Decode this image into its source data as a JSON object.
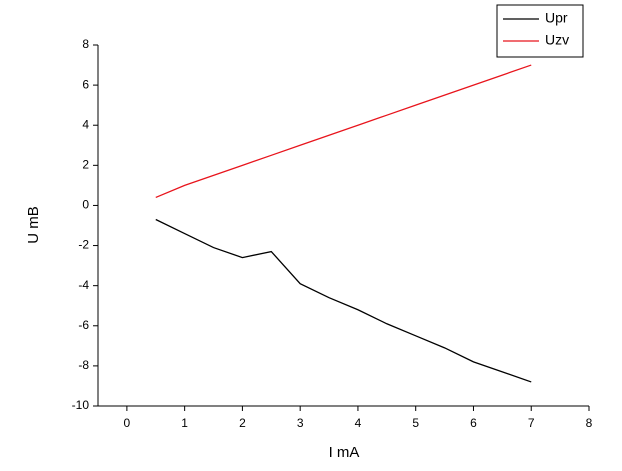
{
  "chart_data": {
    "type": "line",
    "x": [
      0.5,
      1,
      1.5,
      2,
      2.5,
      3,
      3.5,
      4,
      4.5,
      5,
      5.5,
      6,
      6.5,
      7
    ],
    "series": [
      {
        "name": "Upr",
        "color": "#000000",
        "values": [
          -0.7,
          -1.4,
          -2.1,
          -2.6,
          -2.3,
          -3.9,
          -4.6,
          -5.2,
          -5.9,
          -6.5,
          -7.1,
          -7.8,
          -8.3,
          -8.8
        ]
      },
      {
        "name": "Uzv",
        "color": "#e8141c",
        "values": [
          0.4,
          1.0,
          1.5,
          2.0,
          2.5,
          3.0,
          3.5,
          4.0,
          4.5,
          5.0,
          5.5,
          6.0,
          6.5,
          7.0
        ]
      }
    ],
    "x_label": "I  mA",
    "y_label": "U  mB",
    "xlim": [
      -0.5,
      8
    ],
    "xticks": [
      0,
      1,
      2,
      3,
      4,
      5,
      6,
      7,
      8
    ],
    "ylim": [
      -10,
      8
    ],
    "yticks": [
      -10,
      -8,
      -6,
      -4,
      -2,
      0,
      2,
      4,
      6,
      8
    ],
    "legend": "top-right"
  }
}
